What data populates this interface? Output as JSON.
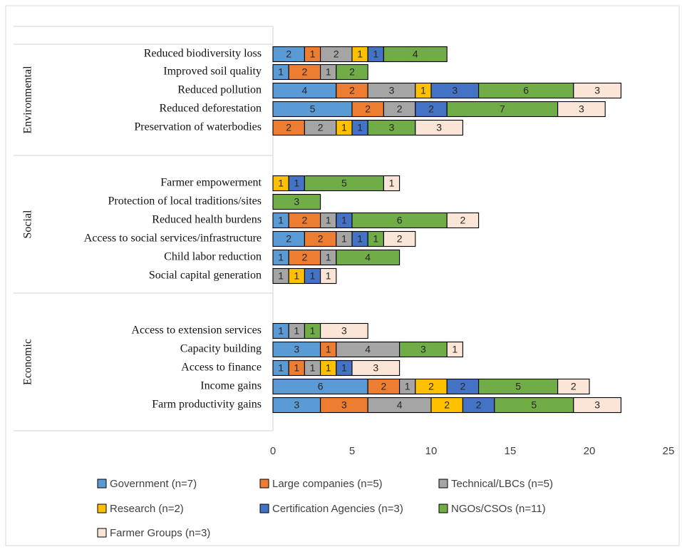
{
  "chart_data": {
    "type": "bar",
    "orientation": "horizontal",
    "stacked": true,
    "xlim": [
      0,
      25
    ],
    "xticks": [
      0,
      5,
      10,
      15,
      20,
      25
    ],
    "grid": false,
    "legend_position": "bottom",
    "series": [
      {
        "name": "Government (n=7)",
        "color": "#5B9BD5"
      },
      {
        "name": "Large companies (n=5)",
        "color": "#ED7D31"
      },
      {
        "name": "Technical/LBCs  (n=5)",
        "color": "#A5A5A5"
      },
      {
        "name": "Research (n=2)",
        "color": "#FFC000"
      },
      {
        "name": "Certification Agencies (n=3)",
        "color": "#4472C4"
      },
      {
        "name": "NGOs/CSOs (n=11)",
        "color": "#70AD47"
      },
      {
        "name": "Farmer Groups (n=3)",
        "color": "#FBE5D6"
      }
    ],
    "groups": [
      {
        "name": "Environmental",
        "categories": [
          {
            "label": "Reduced biodiversity loss",
            "values": [
              2,
              1,
              2,
              1,
              1,
              4,
              0
            ]
          },
          {
            "label": "Improved soil quality",
            "values": [
              1,
              2,
              1,
              0,
              0,
              2,
              0
            ]
          },
          {
            "label": "Reduced pollution",
            "values": [
              4,
              2,
              3,
              1,
              3,
              6,
              3
            ]
          },
          {
            "label": "Reduced deforestation",
            "values": [
              5,
              2,
              2,
              0,
              2,
              7,
              3
            ]
          },
          {
            "label": "Preservation of waterbodies",
            "values": [
              0,
              2,
              2,
              1,
              1,
              3,
              3
            ]
          }
        ]
      },
      {
        "name": "Social",
        "categories": [
          {
            "label": "Farmer empowerment",
            "values": [
              0,
              0,
              0,
              1,
              1,
              5,
              1
            ]
          },
          {
            "label": "Protection of local traditions/sites",
            "values": [
              0,
              0,
              0,
              0,
              0,
              3,
              0
            ]
          },
          {
            "label": "Reduced health burdens",
            "values": [
              1,
              2,
              1,
              0,
              1,
              6,
              2
            ]
          },
          {
            "label": "Access to social services/infrastructure",
            "values": [
              2,
              2,
              1,
              0,
              1,
              1,
              2
            ]
          },
          {
            "label": "Child labor reduction",
            "values": [
              1,
              2,
              1,
              0,
              0,
              4,
              0
            ]
          },
          {
            "label": "Social capital generation",
            "values": [
              0,
              0,
              1,
              1,
              1,
              0,
              1
            ]
          }
        ]
      },
      {
        "name": "Economic",
        "categories": [
          {
            "label": "Access to extension services",
            "values": [
              1,
              0,
              1,
              0,
              0,
              1,
              3
            ]
          },
          {
            "label": "Capacity building",
            "values": [
              3,
              1,
              4,
              0,
              0,
              3,
              1
            ]
          },
          {
            "label": "Access to finance",
            "values": [
              1,
              1,
              1,
              1,
              1,
              0,
              3
            ]
          },
          {
            "label": "Income gains",
            "values": [
              6,
              2,
              1,
              2,
              2,
              5,
              2
            ]
          },
          {
            "label": "Farm productivity gains",
            "values": [
              3,
              3,
              4,
              2,
              2,
              5,
              3
            ]
          }
        ]
      }
    ]
  }
}
